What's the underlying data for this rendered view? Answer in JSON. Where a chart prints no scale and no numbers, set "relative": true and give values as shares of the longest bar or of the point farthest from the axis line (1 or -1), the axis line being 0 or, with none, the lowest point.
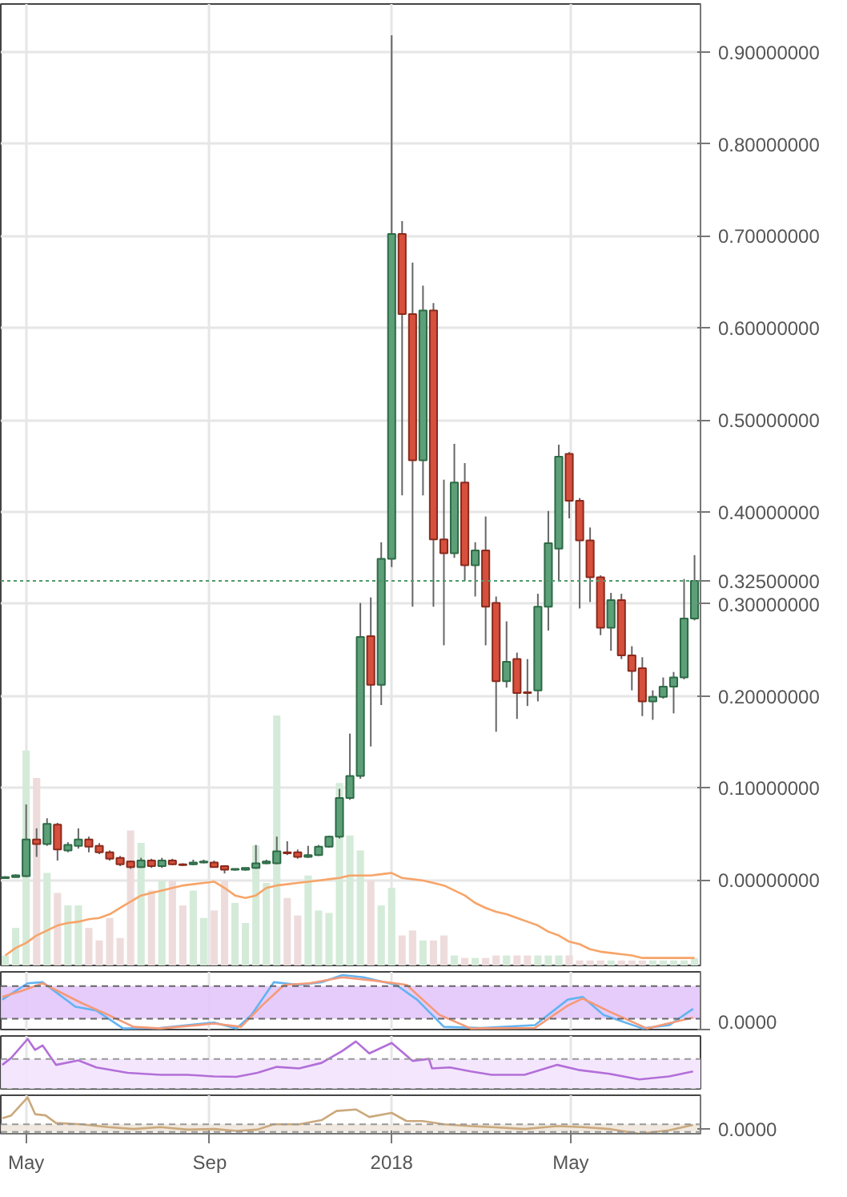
{
  "chart_data": [
    {
      "type": "candlestick",
      "x": [
        "2017-04-17",
        "2017-04-24",
        "2017-05-01",
        "2017-05-08",
        "2017-05-15",
        "2017-05-22",
        "2017-05-29",
        "2017-06-05",
        "2017-06-12",
        "2017-06-19",
        "2017-06-26",
        "2017-07-03",
        "2017-07-10",
        "2017-07-17",
        "2017-07-24",
        "2017-07-31",
        "2017-08-07",
        "2017-08-14",
        "2017-08-21",
        "2017-08-28",
        "2017-09-04",
        "2017-09-11",
        "2017-09-18",
        "2017-09-25",
        "2017-10-02",
        "2017-10-09",
        "2017-10-16",
        "2017-10-23",
        "2017-10-30",
        "2017-11-06",
        "2017-11-13",
        "2017-11-20",
        "2017-11-27",
        "2017-12-04",
        "2017-12-11",
        "2017-12-18",
        "2017-12-25",
        "2018-01-01",
        "2018-01-08",
        "2018-01-15",
        "2018-01-22",
        "2018-01-29",
        "2018-02-05",
        "2018-02-12",
        "2018-02-19",
        "2018-02-26",
        "2018-03-05",
        "2018-03-12",
        "2018-03-19",
        "2018-03-26",
        "2018-04-02",
        "2018-04-09",
        "2018-04-16",
        "2018-04-23",
        "2018-04-30",
        "2018-05-07",
        "2018-05-14",
        "2018-05-21",
        "2018-05-28",
        "2018-06-04",
        "2018-06-11",
        "2018-06-18",
        "2018-06-25",
        "2018-07-02",
        "2018-07-09",
        "2018-07-16",
        "2018-07-23"
      ],
      "ohlc": [
        [
          0.002,
          0.004,
          0.002,
          0.003
        ],
        [
          0.003,
          0.006,
          0.003,
          0.005
        ],
        [
          0.004,
          0.082,
          0.003,
          0.044
        ],
        [
          0.044,
          0.056,
          0.025,
          0.039
        ],
        [
          0.039,
          0.067,
          0.037,
          0.061
        ],
        [
          0.06,
          0.062,
          0.021,
          0.033
        ],
        [
          0.032,
          0.041,
          0.03,
          0.038
        ],
        [
          0.037,
          0.056,
          0.034,
          0.044
        ],
        [
          0.044,
          0.047,
          0.03,
          0.036
        ],
        [
          0.037,
          0.04,
          0.028,
          0.03
        ],
        [
          0.03,
          0.032,
          0.021,
          0.023
        ],
        [
          0.024,
          0.026,
          0.015,
          0.017
        ],
        [
          0.02,
          0.021,
          0.012,
          0.014
        ],
        [
          0.014,
          0.024,
          0.013,
          0.021
        ],
        [
          0.021,
          0.023,
          0.013,
          0.015
        ],
        [
          0.015,
          0.024,
          0.013,
          0.021
        ],
        [
          0.021,
          0.023,
          0.016,
          0.017
        ],
        [
          0.017,
          0.018,
          0.015,
          0.016
        ],
        [
          0.017,
          0.022,
          0.016,
          0.019
        ],
        [
          0.019,
          0.022,
          0.018,
          0.02
        ],
        [
          0.019,
          0.021,
          0.014,
          0.014
        ],
        [
          0.015,
          0.016,
          0.007,
          0.011
        ],
        [
          0.011,
          0.012,
          0.01,
          0.012
        ],
        [
          0.011,
          0.013,
          0.01,
          0.013
        ],
        [
          0.013,
          0.038,
          0.012,
          0.018
        ],
        [
          0.018,
          0.022,
          0.017,
          0.02
        ],
        [
          0.018,
          0.047,
          0.017,
          0.031
        ],
        [
          0.03,
          0.042,
          0.027,
          0.029
        ],
        [
          0.03,
          0.033,
          0.023,
          0.025
        ],
        [
          0.025,
          0.037,
          0.024,
          0.027
        ],
        [
          0.027,
          0.038,
          0.026,
          0.036
        ],
        [
          0.036,
          0.048,
          0.035,
          0.047
        ],
        [
          0.047,
          0.099,
          0.045,
          0.089
        ],
        [
          0.089,
          0.159,
          0.087,
          0.113
        ],
        [
          0.113,
          0.301,
          0.11,
          0.264
        ],
        [
          0.265,
          0.307,
          0.145,
          0.212
        ],
        [
          0.212,
          0.367,
          0.19,
          0.349
        ],
        [
          0.349,
          0.918,
          0.34,
          0.702
        ],
        [
          0.702,
          0.716,
          0.418,
          0.615
        ],
        [
          0.615,
          0.671,
          0.297,
          0.456
        ],
        [
          0.456,
          0.646,
          0.418,
          0.619
        ],
        [
          0.619,
          0.627,
          0.297,
          0.37
        ],
        [
          0.37,
          0.435,
          0.255,
          0.355
        ],
        [
          0.355,
          0.474,
          0.35,
          0.432
        ],
        [
          0.432,
          0.453,
          0.325,
          0.342
        ],
        [
          0.342,
          0.367,
          0.308,
          0.358
        ],
        [
          0.358,
          0.395,
          0.255,
          0.297
        ],
        [
          0.301,
          0.308,
          0.161,
          0.216
        ],
        [
          0.216,
          0.281,
          0.209,
          0.237
        ],
        [
          0.24,
          0.247,
          0.175,
          0.203
        ],
        [
          0.204,
          0.24,
          0.189,
          0.203
        ],
        [
          0.206,
          0.311,
          0.194,
          0.297
        ],
        [
          0.297,
          0.401,
          0.271,
          0.366
        ],
        [
          0.36,
          0.473,
          0.325,
          0.46
        ],
        [
          0.463,
          0.465,
          0.393,
          0.412
        ],
        [
          0.412,
          0.415,
          0.295,
          0.369
        ],
        [
          0.369,
          0.383,
          0.302,
          0.329
        ],
        [
          0.329,
          0.331,
          0.266,
          0.274
        ],
        [
          0.274,
          0.312,
          0.249,
          0.304
        ],
        [
          0.304,
          0.311,
          0.24,
          0.244
        ],
        [
          0.244,
          0.254,
          0.206,
          0.227
        ],
        [
          0.23,
          0.242,
          0.178,
          0.194
        ],
        [
          0.194,
          0.206,
          0.174,
          0.199
        ],
        [
          0.199,
          0.22,
          0.197,
          0.21
        ],
        [
          0.21,
          0.226,
          0.181,
          0.22
        ],
        [
          0.22,
          0.327,
          0.218,
          0.284
        ],
        [
          0.284,
          0.353,
          0.282,
          0.325
        ]
      ],
      "xlim": [
        "2017-04-14",
        "2018-07-27"
      ],
      "ylim": [
        -0.093,
        0.952
      ],
      "xticks": [
        {
          "value": "2017-05-01",
          "label": null
        },
        {
          "value": "2017-09-01",
          "label": null
        },
        {
          "value": "2018-01-01",
          "label": null
        },
        {
          "value": "2018-05-01",
          "label": null
        }
      ],
      "yticks": [
        {
          "value": 0,
          "label": "0.00000000"
        },
        {
          "value": 0.1,
          "label": "0.10000000"
        },
        {
          "value": 0.2,
          "label": "0.20000000"
        },
        {
          "value": 0.3,
          "label": "0.30000000"
        },
        {
          "value": 0.4,
          "label": "0.40000000"
        },
        {
          "value": 0.5,
          "label": "0.50000000"
        },
        {
          "value": 0.6,
          "label": "0.60000000"
        },
        {
          "value": 0.7,
          "label": "0.70000000"
        },
        {
          "value": 0.8,
          "label": "0.80000000"
        },
        {
          "value": 0.9,
          "label": "0.90000000"
        }
      ],
      "ref_lines": [
        {
          "axis": "y",
          "value": 0.325,
          "label": "0.32500000",
          "color": "#4f9a6c",
          "line_style": "dotted"
        }
      ],
      "grid": true,
      "tick_labels": "y"
    },
    {
      "type": "bar",
      "relative": true,
      "x": [
        "2017-04-17",
        "2017-04-24",
        "2017-05-01",
        "2017-05-08",
        "2017-05-15",
        "2017-05-22",
        "2017-05-29",
        "2017-06-05",
        "2017-06-12",
        "2017-06-19",
        "2017-06-26",
        "2017-07-03",
        "2017-07-10",
        "2017-07-17",
        "2017-07-24",
        "2017-07-31",
        "2017-08-07",
        "2017-08-14",
        "2017-08-21",
        "2017-08-28",
        "2017-09-04",
        "2017-09-11",
        "2017-09-18",
        "2017-09-25",
        "2017-10-02",
        "2017-10-09",
        "2017-10-16",
        "2017-10-23",
        "2017-10-30",
        "2017-11-06",
        "2017-11-13",
        "2017-11-20",
        "2017-11-27",
        "2017-12-04",
        "2017-12-11",
        "2017-12-18",
        "2017-12-25",
        "2018-01-01",
        "2018-01-08",
        "2018-01-15",
        "2018-01-22",
        "2018-01-29",
        "2018-02-05",
        "2018-02-12",
        "2018-02-19",
        "2018-02-26",
        "2018-03-05",
        "2018-03-12",
        "2018-03-19",
        "2018-03-26",
        "2018-04-02",
        "2018-04-09",
        "2018-04-16",
        "2018-04-23",
        "2018-04-30",
        "2018-05-07",
        "2018-05-14",
        "2018-05-21",
        "2018-05-28",
        "2018-06-04",
        "2018-06-11",
        "2018-06-18",
        "2018-06-25",
        "2018-07-02",
        "2018-07-09",
        "2018-07-16",
        "2018-07-23"
      ],
      "series": [
        {
          "type": "bar",
          "values": [
            0.04,
            0.15,
            0.86,
            0.75,
            0.37,
            0.29,
            0.24,
            0.24,
            0.15,
            0.1,
            0.19,
            0.11,
            0.54,
            0.49,
            0.3,
            0.34,
            0.34,
            0.24,
            0.3,
            0.19,
            0.22,
            0.34,
            0.25,
            0.17,
            0.48,
            0.33,
            1.0,
            0.27,
            0.2,
            0.36,
            0.22,
            0.21,
            0.73,
            0.52,
            0.46,
            0.34,
            0.24,
            0.31,
            0.12,
            0.14,
            0.1,
            0.1,
            0.12,
            0.04,
            0.03,
            0.03,
            0.03,
            0.04,
            0.04,
            0.04,
            0.04,
            0.04,
            0.04,
            0.04,
            0.04,
            0.02,
            0.02,
            0.02,
            0.02,
            0.02,
            0.02,
            0.02,
            0.02,
            0.02,
            0.02,
            0.02,
            0.03
          ],
          "colors": [
            "#d5ebd9",
            "#d5ebd9",
            "#d5ebd9",
            "#eedcdc",
            "#d5ebd9",
            "#eedcdc",
            "#d5ebd9",
            "#d5ebd9",
            "#eedcdc",
            "#eedcdc",
            "#eedcdc",
            "#eedcdc",
            "#eedcdc",
            "#d5ebd9",
            "#eedcdc",
            "#d5ebd9",
            "#eedcdc",
            "#eedcdc",
            "#d5ebd9",
            "#d5ebd9",
            "#eedcdc",
            "#eedcdc",
            "#d5ebd9",
            "#d5ebd9",
            "#d5ebd9",
            "#d5ebd9",
            "#d5ebd9",
            "#eedcdc",
            "#eedcdc",
            "#d5ebd9",
            "#d5ebd9",
            "#d5ebd9",
            "#d5ebd9",
            "#d5ebd9",
            "#d5ebd9",
            "#eedcdc",
            "#d5ebd9",
            "#d5ebd9",
            "#eedcdc",
            "#eedcdc",
            "#d5ebd9",
            "#eedcdc",
            "#eedcdc",
            "#d5ebd9",
            "#eedcdc",
            "#d5ebd9",
            "#eedcdc",
            "#eedcdc",
            "#d5ebd9",
            "#eedcdc",
            "#eedcdc",
            "#d5ebd9",
            "#d5ebd9",
            "#d5ebd9",
            "#eedcdc",
            "#eedcdc",
            "#eedcdc",
            "#eedcdc",
            "#d5ebd9",
            "#eedcdc",
            "#eedcdc",
            "#eedcdc",
            "#d5ebd9",
            "#d5ebd9",
            "#d5ebd9",
            "#d5ebd9",
            "#d5ebd9"
          ]
        },
        {
          "type": "line",
          "color": "#f7a468",
          "values": [
            0.04,
            0.07,
            0.09,
            0.12,
            0.14,
            0.16,
            0.17,
            0.175,
            0.185,
            0.19,
            0.205,
            0.23,
            0.255,
            0.28,
            0.29,
            0.3,
            0.31,
            0.32,
            0.325,
            0.33,
            0.335,
            0.31,
            0.28,
            0.27,
            0.28,
            0.31,
            0.32,
            0.325,
            0.33,
            0.335,
            0.34,
            0.345,
            0.35,
            0.36,
            0.36,
            0.36,
            0.365,
            0.37,
            0.35,
            0.345,
            0.34,
            0.33,
            0.32,
            0.3,
            0.28,
            0.25,
            0.23,
            0.215,
            0.205,
            0.19,
            0.175,
            0.16,
            0.135,
            0.12,
            0.095,
            0.085,
            0.065,
            0.055,
            0.05,
            0.045,
            0.04,
            0.03,
            0.03,
            0.03,
            0.03,
            0.03,
            0.03
          ]
        }
      ],
      "xlim": [
        "2017-04-14",
        "2018-07-27"
      ],
      "tick_labels": false
    },
    {
      "type": "line",
      "relative": true,
      "xlim": [
        "2017-04-14",
        "2018-07-27"
      ],
      "xticks": [
        {
          "value": "2017-05-01",
          "label": null
        },
        {
          "value": "2017-09-01",
          "label": null
        },
        {
          "value": "2018-01-01",
          "label": null
        },
        {
          "value": "2018-05-01",
          "label": null
        }
      ],
      "grid": "x",
      "tick_labels": false,
      "series": [
        {
          "color": "#63b3f2",
          "x": [
            "2017-04-15",
            "2017-05-02",
            "2017-05-12",
            "2017-06-03",
            "2017-06-17",
            "2017-07-05",
            "2017-07-30",
            "2017-09-04",
            "2017-09-19",
            "2017-09-29",
            "2017-10-14",
            "2017-10-31",
            "2017-11-15",
            "2017-11-29",
            "2017-12-13",
            "2018-01-04",
            "2018-01-18",
            "2018-02-05",
            "2018-03-02",
            "2018-04-07",
            "2018-04-29",
            "2018-05-09",
            "2018-05-23",
            "2018-06-18",
            "2018-07-06",
            "2018-07-22"
          ],
          "values": [
            0.55,
            0.85,
            0.87,
            0.42,
            0.35,
            0.02,
            0.03,
            0.13,
            0.02,
            0.27,
            0.87,
            0.82,
            0.87,
            1.0,
            0.96,
            0.82,
            0.55,
            0.05,
            0.03,
            0.08,
            0.55,
            0.6,
            0.27,
            0.02,
            0.08,
            0.38
          ]
        },
        {
          "color": "#f59a78",
          "x": [
            "2017-04-15",
            "2017-04-28",
            "2017-05-12",
            "2017-06-07",
            "2017-06-25",
            "2017-07-12",
            "2017-07-30",
            "2017-09-04",
            "2017-09-22",
            "2017-10-06",
            "2017-10-21",
            "2017-11-07",
            "2017-11-29",
            "2017-12-20",
            "2018-01-11",
            "2018-02-02",
            "2018-02-23",
            "2018-04-07",
            "2018-04-29",
            "2018-05-09",
            "2018-05-27",
            "2018-06-21",
            "2018-07-22"
          ],
          "values": [
            0.6,
            0.71,
            0.85,
            0.49,
            0.27,
            0.05,
            0.02,
            0.11,
            0.05,
            0.44,
            0.82,
            0.85,
            0.96,
            0.9,
            0.82,
            0.27,
            0.02,
            0.03,
            0.44,
            0.57,
            0.33,
            0.02,
            0.22
          ]
        }
      ],
      "bands": [
        {
          "axis": "y",
          "from": 0.2,
          "to": 0.8,
          "color": "#e2c6fb"
        }
      ],
      "ref_lines": [
        {
          "axis": "y",
          "value": 0.2,
          "color": "#666666",
          "line_style": "dashed"
        },
        {
          "axis": "y",
          "value": 0.8,
          "color": "#666666",
          "line_style": "dashed"
        }
      ],
      "annotations": [
        "0.0000"
      ]
    },
    {
      "type": "line",
      "relative": true,
      "xlim": [
        "2017-04-14",
        "2018-07-27"
      ],
      "xticks": [
        {
          "value": "2017-05-01",
          "label": null
        },
        {
          "value": "2017-09-01",
          "label": null
        },
        {
          "value": "2018-01-01",
          "label": null
        },
        {
          "value": "2018-05-01",
          "label": null
        }
      ],
      "grid": "x",
      "tick_labels": false,
      "series": [
        {
          "color": "#b36fd8",
          "x": [
            "2017-04-15",
            "2017-04-21",
            "2017-05-02",
            "2017-05-07",
            "2017-05-12",
            "2017-05-21",
            "2017-06-05",
            "2017-06-17",
            "2017-07-08",
            "2017-07-30",
            "2017-08-17",
            "2017-09-04",
            "2017-09-19",
            "2017-10-03",
            "2017-10-16",
            "2017-10-31",
            "2017-11-15",
            "2017-11-29",
            "2017-12-08",
            "2017-12-17",
            "2018-01-01",
            "2018-01-15",
            "2018-01-26",
            "2018-01-28",
            "2018-02-09",
            "2018-02-23",
            "2018-03-09",
            "2018-03-31",
            "2018-04-22",
            "2018-05-06",
            "2018-05-27",
            "2018-06-16",
            "2018-07-06",
            "2018-07-22"
          ],
          "values": [
            0.48,
            0.62,
            1.0,
            0.78,
            0.87,
            0.48,
            0.57,
            0.43,
            0.32,
            0.28,
            0.28,
            0.25,
            0.24,
            0.32,
            0.44,
            0.41,
            0.52,
            0.76,
            0.95,
            0.71,
            0.92,
            0.56,
            0.6,
            0.41,
            0.43,
            0.35,
            0.28,
            0.28,
            0.48,
            0.38,
            0.3,
            0.19,
            0.25,
            0.35
          ]
        }
      ],
      "bands": [
        {
          "axis": "y",
          "from": 0,
          "to": 0.6,
          "color": "#f3e4fd"
        }
      ],
      "ref_lines": [
        {
          "axis": "y",
          "value": 0,
          "color": "#999999",
          "line_style": "dashed"
        },
        {
          "axis": "y",
          "value": 0.6,
          "color": "#999999",
          "line_style": "dashed"
        }
      ]
    },
    {
      "type": "line",
      "relative": true,
      "xlim": [
        "2017-04-14",
        "2018-07-27"
      ],
      "xticks": [
        {
          "value": "2017-05-01",
          "label": "May"
        },
        {
          "value": "2017-09-01",
          "label": "Sep"
        },
        {
          "value": "2018-01-01",
          "label": "2018"
        },
        {
          "value": "2018-05-01",
          "label": "May"
        }
      ],
      "grid": "x",
      "tick_labels": "x",
      "series": [
        {
          "color": "#cba97c",
          "x": [
            "2017-04-15",
            "2017-04-21",
            "2017-05-02",
            "2017-05-07",
            "2017-05-14",
            "2017-05-21",
            "2017-06-07",
            "2017-06-25",
            "2017-07-12",
            "2017-07-30",
            "2017-08-17",
            "2017-09-04",
            "2017-09-19",
            "2017-10-03",
            "2017-10-14",
            "2017-10-31",
            "2017-11-15",
            "2017-11-25",
            "2017-12-08",
            "2017-12-17",
            "2018-01-01",
            "2018-01-11",
            "2018-01-22",
            "2018-02-05",
            "2018-02-23",
            "2018-03-09",
            "2018-03-31",
            "2018-04-22",
            "2018-05-09",
            "2018-05-27",
            "2018-06-16",
            "2018-07-06",
            "2018-07-22"
          ],
          "values": [
            0.34,
            0.43,
            1.0,
            0.47,
            0.43,
            0.19,
            0.15,
            0.06,
            0,
            0.06,
            -0.02,
            0,
            -0.06,
            -0.02,
            0.15,
            0.15,
            0.28,
            0.57,
            0.62,
            0.38,
            0.51,
            0.25,
            0.25,
            0.15,
            0.09,
            0.06,
            0,
            0.09,
            0.06,
            0,
            -0.15,
            -0.04,
            0.13
          ]
        }
      ],
      "bands": [
        {
          "axis": "y",
          "from": -0.09,
          "to": 0.15,
          "color": "#efe7db"
        }
      ],
      "ref_lines": [
        {
          "axis": "y",
          "value": -0.09,
          "color": "#999999",
          "line_style": "dashed"
        },
        {
          "axis": "y",
          "value": 0.15,
          "color": "#999999",
          "line_style": "dashed"
        }
      ],
      "annotations": [
        "0.0000"
      ]
    }
  ]
}
